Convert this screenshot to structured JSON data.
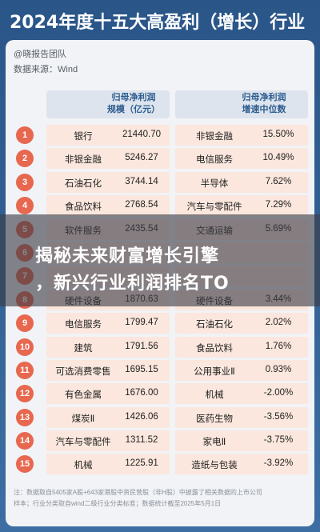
{
  "title": "2024年度十五大高盈利（增长）行业",
  "source": {
    "author": "@晓报告团队",
    "data_source": "数据来源：Wind"
  },
  "columns": {
    "left_header_line1": "归母净利润",
    "left_header_line2": "规模（亿元）",
    "right_header_line1": "归母净利润",
    "right_header_line2": "增速中位数"
  },
  "rows": [
    {
      "rank": "1",
      "left_industry": "银行",
      "left_value": "21440.70",
      "right_industry": "非银金融",
      "right_value": "15.50%"
    },
    {
      "rank": "2",
      "left_industry": "非银金融",
      "left_value": "5246.27",
      "right_industry": "电信服务",
      "right_value": "10.49%"
    },
    {
      "rank": "3",
      "left_industry": "石油石化",
      "left_value": "3744.14",
      "right_industry": "半导体",
      "right_value": "7.62%"
    },
    {
      "rank": "4",
      "left_industry": "食品饮料",
      "left_value": "2768.54",
      "right_industry": "汽车与零配件",
      "right_value": "7.29%"
    },
    {
      "rank": "5",
      "left_industry": "软件服务",
      "left_value": "2435.54",
      "right_industry": "交通运输",
      "right_value": "5.69%"
    },
    {
      "rank": "6",
      "left_industry": "",
      "left_value": "",
      "right_industry": "",
      "right_value": ""
    },
    {
      "rank": "7",
      "left_industry": "",
      "left_value": "",
      "right_industry": "",
      "right_value": ""
    },
    {
      "rank": "8",
      "left_industry": "硬件设备",
      "left_value": "1870.63",
      "right_industry": "硬件设备",
      "right_value": "3.44%"
    },
    {
      "rank": "9",
      "left_industry": "电信服务",
      "left_value": "1799.47",
      "right_industry": "石油石化",
      "right_value": "2.02%"
    },
    {
      "rank": "10",
      "left_industry": "建筑",
      "left_value": "1791.56",
      "right_industry": "食品饮料",
      "right_value": "1.76%"
    },
    {
      "rank": "11",
      "left_industry": "可选消费零售",
      "left_value": "1695.15",
      "right_industry": "公用事业Ⅱ",
      "right_value": "0.93%"
    },
    {
      "rank": "12",
      "left_industry": "有色金属",
      "left_value": "1676.00",
      "right_industry": "机械",
      "right_value": "-2.00%"
    },
    {
      "rank": "13",
      "left_industry": "煤炭Ⅱ",
      "left_value": "1426.06",
      "right_industry": "医药生物",
      "right_value": "-3.56%"
    },
    {
      "rank": "14",
      "left_industry": "汽车与零配件",
      "left_value": "1311.52",
      "right_industry": "家电Ⅱ",
      "right_value": "-3.75%"
    },
    {
      "rank": "15",
      "left_industry": "机械",
      "left_value": "1225.91",
      "right_industry": "造纸与包装",
      "right_value": "-3.92%"
    }
  ],
  "overlay": {
    "line1": "揭秘未来财富增长引擎",
    "line2": "，新兴行业利润排名TO"
  },
  "footnotes": {
    "line1": "注：数据取自5405家A股+643家港股中资民营股（非H股）中披露了相关数据的上市公司",
    "line2": "样本；行业分类取自wind二级行业分类标准；数据统计截至2025年5月1日"
  },
  "colors": {
    "background": "#2f5c8f",
    "card": "#f1f3f6",
    "rank_badge": "#e7674f",
    "cell": "#fbe7dd",
    "header_text": "#2d5d8f"
  }
}
